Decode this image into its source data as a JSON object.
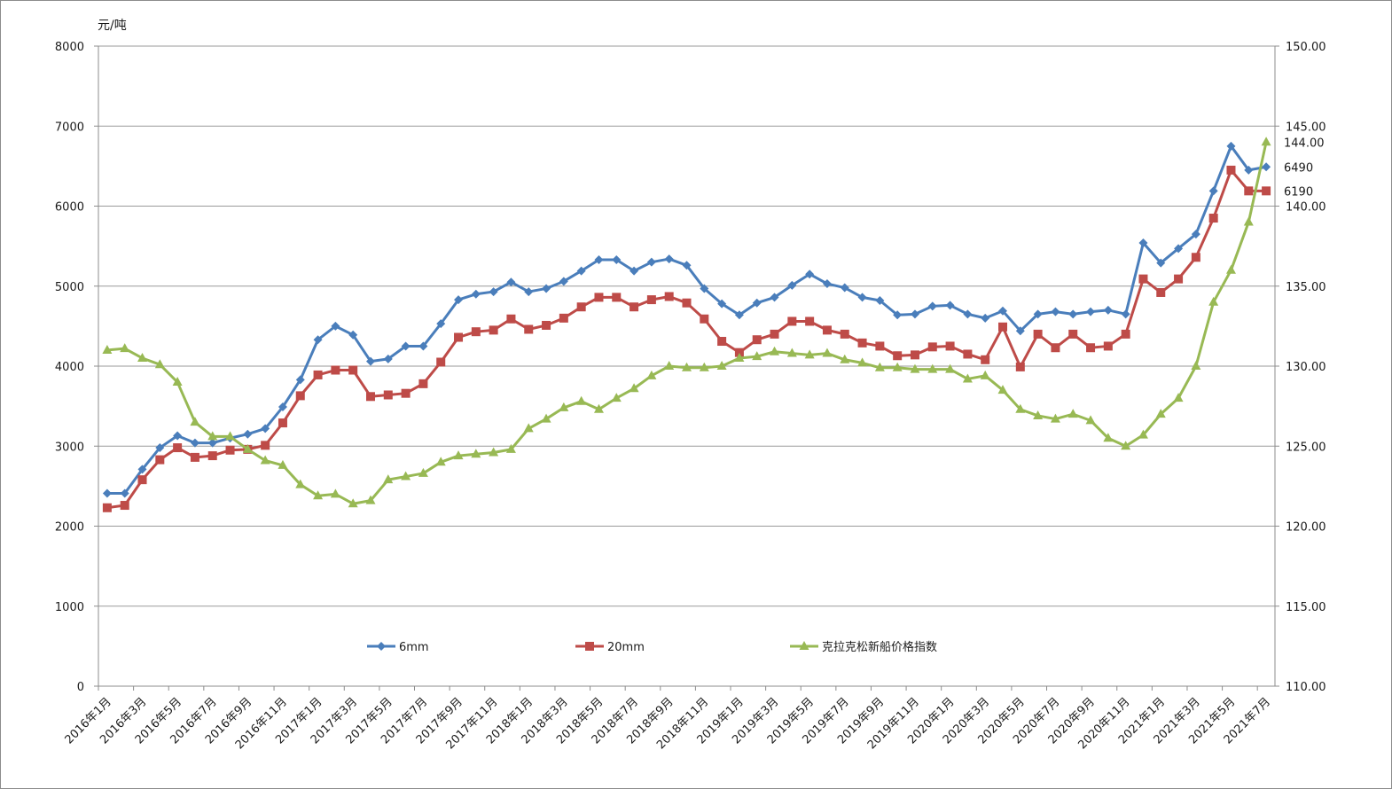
{
  "chart_data": {
    "type": "line",
    "y_unit_label": "元/吨",
    "left_axis": {
      "ylim": [
        0,
        8000
      ],
      "ticks": [
        "0",
        "1000",
        "2000",
        "3000",
        "4000",
        "5000",
        "6000",
        "7000",
        "8000"
      ]
    },
    "right_axis": {
      "ylim": [
        110,
        150
      ],
      "ticks": [
        "110.00",
        "115.00",
        "120.00",
        "125.00",
        "130.00",
        "135.00",
        "140.00",
        "145.00",
        "150.00"
      ]
    },
    "x_labels": [
      "2016年1月",
      "2016年3月",
      "2016年5月",
      "2016年7月",
      "2016年9月",
      "2016年11月",
      "2017年1月",
      "2017年3月",
      "2017年5月",
      "2017年7月",
      "2017年9月",
      "2017年11月",
      "2018年1月",
      "2018年3月",
      "2018年5月",
      "2018年7月",
      "2018年9月",
      "2018年11月",
      "2019年1月",
      "2019年3月",
      "2019年5月",
      "2019年7月",
      "2019年9月",
      "2019年11月",
      "2020年1月",
      "2020年3月",
      "2020年5月",
      "2020年7月",
      "2020年9月",
      "2020年11月",
      "2021年1月",
      "2021年3月",
      "2021年5月",
      "2021年7月"
    ],
    "grid": "horizontal",
    "legend_position": "bottom-inside",
    "series": [
      {
        "name": "6mm",
        "axis": "left",
        "color": "#4a7ebb",
        "marker": "diamond",
        "values": [
          2410,
          2410,
          2710,
          2980,
          3130,
          3040,
          3040,
          3100,
          3150,
          3220,
          3490,
          3830,
          4330,
          4500,
          4390,
          4060,
          4090,
          4250,
          4250,
          4530,
          4830,
          4900,
          4930,
          5050,
          4930,
          4970,
          5060,
          5190,
          5330,
          5330,
          5190,
          5300,
          5340,
          5260,
          4970,
          4780,
          4640,
          4790,
          4860,
          5010,
          5150,
          5030,
          4980,
          4860,
          4820,
          4640,
          4650,
          4750,
          4760,
          4650,
          4600,
          4690,
          4440,
          4650,
          4680,
          4650,
          4680,
          4700,
          4650,
          5540,
          5290,
          5470,
          5650,
          6190,
          6750,
          6450,
          6490
        ]
      },
      {
        "name": "20mm",
        "axis": "left",
        "color": "#be4b48",
        "marker": "square",
        "values": [
          2230,
          2260,
          2580,
          2830,
          2980,
          2860,
          2880,
          2950,
          2960,
          3010,
          3290,
          3630,
          3890,
          3950,
          3950,
          3620,
          3640,
          3660,
          3780,
          4050,
          4360,
          4430,
          4450,
          4590,
          4460,
          4510,
          4600,
          4740,
          4860,
          4860,
          4740,
          4830,
          4870,
          4790,
          4590,
          4310,
          4170,
          4330,
          4400,
          4560,
          4560,
          4450,
          4400,
          4290,
          4250,
          4130,
          4140,
          4240,
          4250,
          4150,
          4080,
          4490,
          3990,
          4400,
          4230,
          4400,
          4230,
          4250,
          4400,
          5090,
          4920,
          5090,
          5360,
          5850,
          6450,
          6190,
          6190
        ]
      },
      {
        "name": "克拉克松新船价格指数",
        "axis": "right",
        "color": "#98b954",
        "marker": "triangle",
        "values": [
          131.0,
          131.1,
          130.5,
          130.1,
          129.0,
          126.5,
          125.6,
          125.6,
          124.8,
          124.1,
          123.8,
          122.6,
          121.9,
          122.0,
          121.4,
          121.6,
          122.9,
          123.1,
          123.3,
          124.0,
          124.4,
          124.5,
          124.6,
          124.8,
          126.1,
          126.7,
          127.4,
          127.8,
          127.3,
          128.0,
          128.6,
          129.4,
          130.0,
          129.9,
          129.9,
          130.0,
          130.5,
          130.6,
          130.9,
          130.8,
          130.7,
          130.8,
          130.4,
          130.2,
          129.9,
          129.9,
          129.8,
          129.8,
          129.8,
          129.2,
          129.4,
          128.5,
          127.3,
          126.9,
          126.7,
          127.0,
          126.6,
          125.5,
          125.0,
          125.7,
          127.0,
          128.0,
          130.0,
          134.0,
          136.0,
          139.0,
          144.0
        ]
      }
    ],
    "end_labels": [
      "144.00",
      "6490",
      "6190"
    ]
  }
}
